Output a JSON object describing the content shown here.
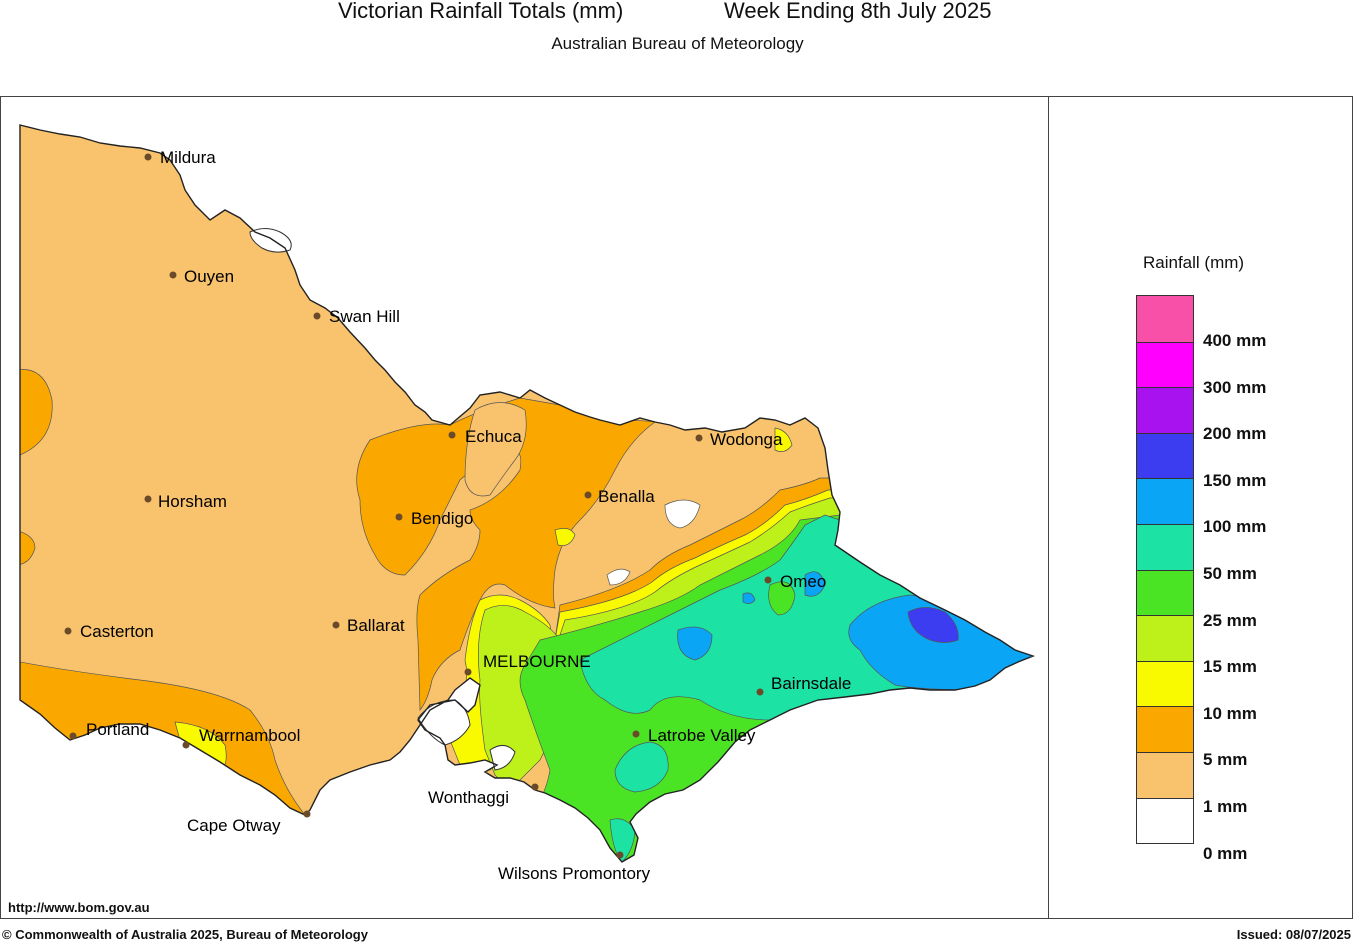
{
  "title": "Victorian Rainfall Totals (mm)",
  "period": "Week Ending 8th July 2025",
  "subtitle": "Australian Bureau of Meteorology",
  "url": "http://www.bom.gov.au",
  "copyright": "© Commonwealth of Australia 2025, Bureau of Meteorology",
  "issued": "Issued: 08/07/2025",
  "legend": {
    "title": "Rainfall (mm)",
    "labels": [
      "400 mm",
      "300 mm",
      "200 mm",
      "150 mm",
      "100 mm",
      "50 mm",
      "25 mm",
      "15 mm",
      "10 mm",
      "5 mm",
      "1 mm",
      "0 mm"
    ],
    "colors": [
      "#f850a8",
      "#ff00ff",
      "#a812ee",
      "#3c3cf0",
      "#0ba5f5",
      "#1ce2a4",
      "#4be425",
      "#bef11a",
      "#f9f900",
      "#faa800",
      "#f9c36d",
      "#ffffff"
    ]
  },
  "towns": [
    "Mildura",
    "Ouyen",
    "Swan Hill",
    "Echuca",
    "Wodonga",
    "Horsham",
    "Bendigo",
    "Benalla",
    "Omeo",
    "Casterton",
    "Ballarat",
    "MELBOURNE",
    "Bairnsdale",
    "Portland",
    "Warrnambool",
    "Latrobe Valley",
    "Wonthaggi",
    "Cape Otway",
    "Wilsons Promontory"
  ]
}
